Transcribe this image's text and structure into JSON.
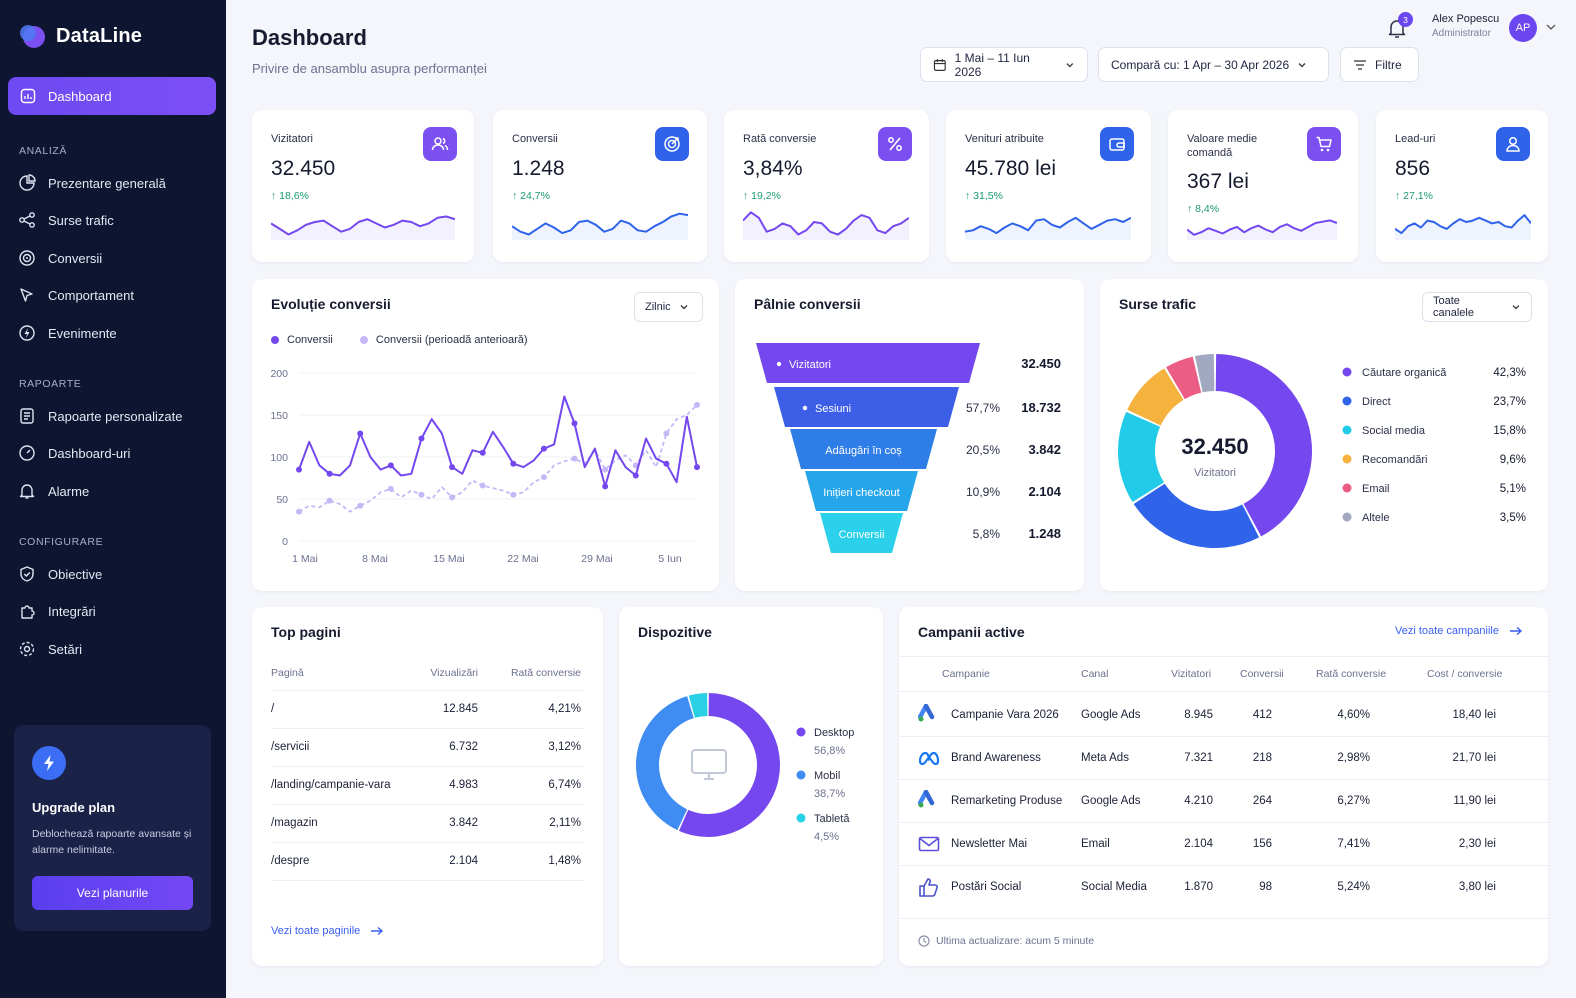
{
  "app": {
    "name": "DataLine"
  },
  "sidebar": {
    "active": "Dashboard",
    "sections": [
      {
        "title": "ANALIZĂ",
        "items": [
          "Prezentare generală",
          "Surse trafic",
          "Conversii",
          "Comportament",
          "Evenimente"
        ]
      },
      {
        "title": "RAPOARTE",
        "items": [
          "Rapoarte personalizate",
          "Dashboard-uri",
          "Alarme"
        ]
      },
      {
        "title": "CONFIGURARE",
        "items": [
          "Obiective",
          "Integrări",
          "Setări"
        ]
      }
    ],
    "upgrade": {
      "title": "Upgrade plan",
      "desc": "Deblochează rapoarte avansate și alarme nelimitate.",
      "button": "Vezi planurile"
    }
  },
  "header": {
    "title": "Dashboard",
    "subtitle": "Privire de ansamblu asupra performanței",
    "date_range": "1 Mai – 11 Iun 2026",
    "compare": "Compară cu: 1 Apr – 30 Apr 2026",
    "filters": "Filtre",
    "notifications": "3",
    "user": {
      "name": "Alex Popescu",
      "role": "Administrator",
      "initials": "AP"
    }
  },
  "kpis": [
    {
      "label": "Vizitatori",
      "value": "32.450",
      "delta": "18,6%",
      "icon": "users-icon",
      "color": "#7b4ff0"
    },
    {
      "label": "Conversii",
      "value": "1.248",
      "delta": "24,7%",
      "icon": "target-icon",
      "color": "#2f63ea"
    },
    {
      "label": "Rată conversie",
      "value": "3,84%",
      "delta": "19,2%",
      "icon": "percent-icon",
      "color": "#7b4ff0"
    },
    {
      "label": "Venituri atribuite",
      "value": "45.780 lei",
      "delta": "31,5%",
      "icon": "wallet-icon",
      "color": "#2f63ea"
    },
    {
      "label": "Valoare medie comandă",
      "value": "367 lei",
      "delta": "8,4%",
      "icon": "cart-icon",
      "color": "#7b4ff0"
    },
    {
      "label": "Lead-uri",
      "value": "856",
      "delta": "27,1%",
      "icon": "user-icon",
      "color": "#2f63ea"
    }
  ],
  "evolution": {
    "title": "Evoluție conversii",
    "period": "Zilnic",
    "chart_data": {
      "type": "line",
      "x_ticks": [
        "1 Mai",
        "8 Mai",
        "15 Mai",
        "22 Mai",
        "29 Mai",
        "5 Iun"
      ],
      "y_ticks": [
        "200",
        "150",
        "100",
        "50",
        "0"
      ],
      "ylim": [
        0,
        200
      ],
      "series": [
        {
          "name": "Conversii",
          "color": "#7447ef",
          "values": [
            85,
            118,
            90,
            80,
            78,
            90,
            128,
            100,
            85,
            90,
            78,
            80,
            122,
            145,
            128,
            88,
            80,
            108,
            105,
            130,
            112,
            92,
            88,
            96,
            110,
            115,
            172,
            140,
            88,
            110,
            65,
            108,
            88,
            78,
            122,
            98,
            92,
            70,
            148,
            88
          ]
        },
        {
          "name": "Conversii (perioadă anterioară)",
          "color": "#c6b8f7",
          "values": [
            35,
            42,
            40,
            48,
            44,
            35,
            42,
            48,
            58,
            62,
            52,
            60,
            55,
            50,
            64,
            52,
            58,
            72,
            66,
            63,
            60,
            55,
            58,
            70,
            76,
            90,
            95,
            98,
            92,
            108,
            85,
            96,
            102,
            90,
            108,
            88,
            128,
            145,
            150,
            162
          ]
        }
      ]
    }
  },
  "funnel": {
    "title": "Pâlnie conversii",
    "chart_data": {
      "type": "bar",
      "stages": [
        {
          "label": "Vizitatori",
          "value": "32.450",
          "pct": ""
        },
        {
          "label": "Sesiuni",
          "value": "18.732",
          "pct": "57,7%"
        },
        {
          "label": "Adăugări în coș",
          "value": "3.842",
          "pct": "20,5%"
        },
        {
          "label": "Inițieri checkout",
          "value": "2.104",
          "pct": "10,9%"
        },
        {
          "label": "Conversii",
          "value": "1.248",
          "pct": "5,8%"
        }
      ]
    }
  },
  "sources": {
    "title": "Surse trafic",
    "filter": "Toate canalele",
    "center_value": "32.450",
    "center_label": "Vizitatori",
    "chart_data": {
      "type": "pie",
      "slices": [
        {
          "label": "Căutare organică",
          "pct": "42,3%",
          "value": 42.3,
          "color": "#7447ef"
        },
        {
          "label": "Direct",
          "pct": "23,7%",
          "value": 23.7,
          "color": "#2f63ea"
        },
        {
          "label": "Social media",
          "pct": "15,8%",
          "value": 15.8,
          "color": "#22cbe8"
        },
        {
          "label": "Recomandări",
          "pct": "9,6%",
          "value": 9.6,
          "color": "#f5b23d"
        },
        {
          "label": "Email",
          "pct": "5,1%",
          "value": 5.1,
          "color": "#ec5d86"
        },
        {
          "label": "Altele",
          "pct": "3,5%",
          "value": 3.5,
          "color": "#a1a8c0"
        }
      ]
    }
  },
  "top_pages": {
    "title": "Top pagini",
    "headers": [
      "Pagină",
      "Vizualizări",
      "Rată conversie"
    ],
    "rows": [
      [
        "/",
        "12.845",
        "4,21%"
      ],
      [
        "/servicii",
        "6.732",
        "3,12%"
      ],
      [
        "/landing/campanie-vara",
        "4.983",
        "6,74%"
      ],
      [
        "/magazin",
        "3.842",
        "2,11%"
      ],
      [
        "/despre",
        "2.104",
        "1,48%"
      ]
    ],
    "link": "Vezi toate paginile"
  },
  "devices": {
    "title": "Dispozitive",
    "chart_data": {
      "type": "pie",
      "slices": [
        {
          "label": "Desktop",
          "pct": "56,8%",
          "value": 56.8,
          "color": "#7447ef"
        },
        {
          "label": "Mobil",
          "pct": "38,7%",
          "value": 38.7,
          "color": "#3f8cf2"
        },
        {
          "label": "Tabletă",
          "pct": "4,5%",
          "value": 4.5,
          "color": "#2ad0e6"
        }
      ]
    }
  },
  "campaigns": {
    "title": "Campanii active",
    "link": "Vezi toate campaniile",
    "headers": [
      "Campanie",
      "Canal",
      "Vizitatori",
      "Conversii",
      "Rată conversie",
      "Cost / conversie"
    ],
    "rows": [
      {
        "icon": "google-ads-icon",
        "cells": [
          "Campanie Vara 2026",
          "Google Ads",
          "8.945",
          "412",
          "4,60%",
          "18,40 lei"
        ]
      },
      {
        "icon": "meta-icon",
        "cells": [
          "Brand Awareness",
          "Meta Ads",
          "7.321",
          "218",
          "2,98%",
          "21,70 lei"
        ]
      },
      {
        "icon": "google-ads-icon",
        "cells": [
          "Remarketing Produse",
          "Google Ads",
          "4.210",
          "264",
          "6,27%",
          "11,90 lei"
        ]
      },
      {
        "icon": "mail-icon",
        "cells": [
          "Newsletter Mai",
          "Email",
          "2.104",
          "156",
          "7,41%",
          "2,30 lei"
        ]
      },
      {
        "icon": "thumbs-up-icon",
        "cells": [
          "Postări Social",
          "Social Media",
          "1.870",
          "98",
          "5,24%",
          "3,80 lei"
        ]
      }
    ],
    "footer": "Ultima actualizare: acum 5 minute"
  }
}
